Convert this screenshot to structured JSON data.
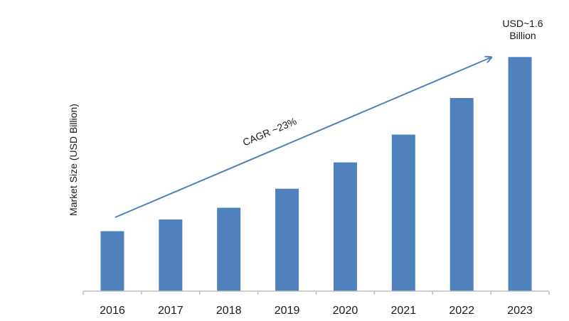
{
  "chart_data": {
    "type": "bar",
    "title": "",
    "xlabel": "",
    "ylabel": "Market Size (USD Billion)",
    "categories": [
      "2016",
      "2017",
      "2018",
      "2019",
      "2020",
      "2021",
      "2022",
      "2023"
    ],
    "values": [
      0.41,
      0.49,
      0.57,
      0.7,
      0.88,
      1.07,
      1.32,
      1.6
    ],
    "ylim": [
      0,
      1.65
    ],
    "grid": false,
    "legend": "none",
    "bar_color": "#4f81bd",
    "arrow_color": "#4f81bd",
    "annotations": {
      "cagr": "CAGR ~23%",
      "final_line1": "USD~1.6",
      "final_line2": "Billion"
    }
  }
}
